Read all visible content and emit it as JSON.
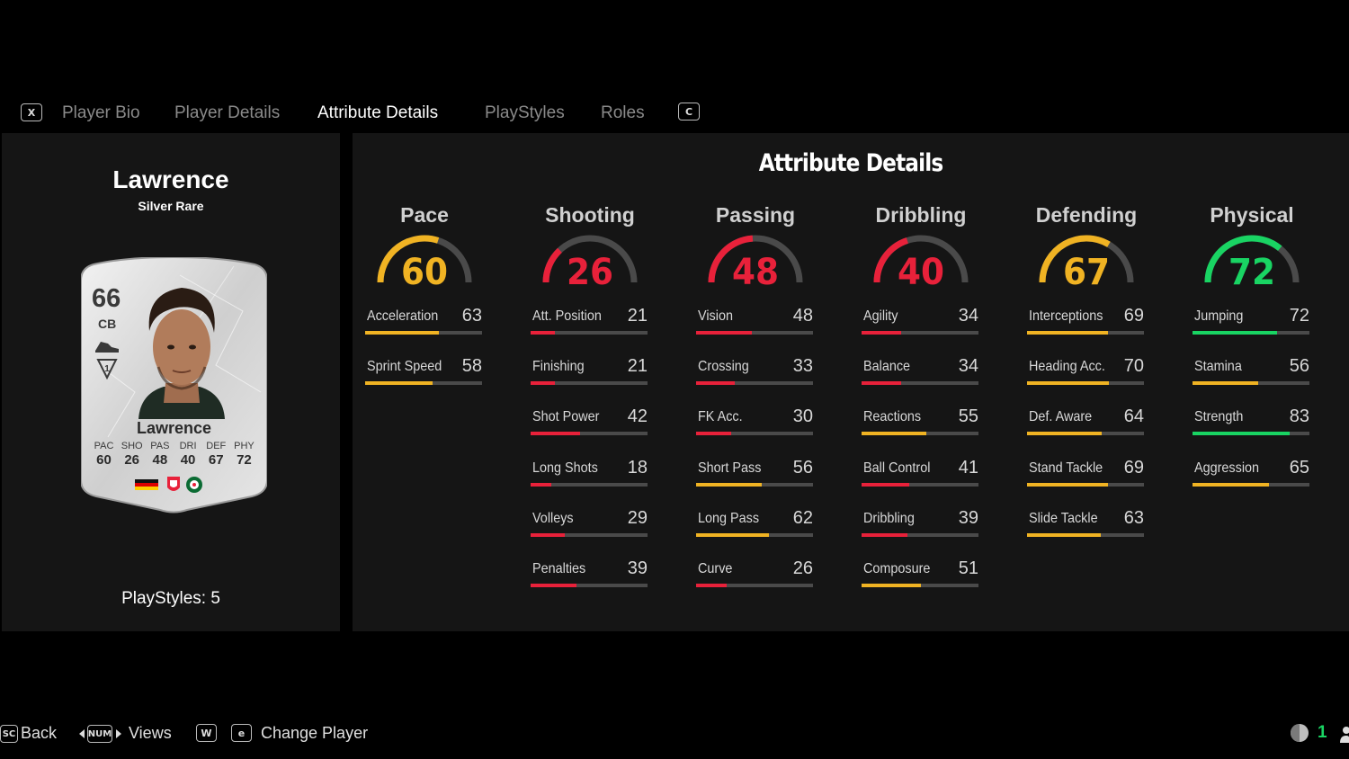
{
  "tabs": {
    "key_left": "X",
    "key_right": "C",
    "items": [
      {
        "label": "Player Bio",
        "active": false
      },
      {
        "label": "Player Details",
        "active": false
      },
      {
        "label": "Attribute Details",
        "active": true
      },
      {
        "label": "PlayStyles",
        "active": false
      },
      {
        "label": "Roles",
        "active": false
      }
    ]
  },
  "player": {
    "name": "Lawrence",
    "rarity": "Silver Rare",
    "playstyles": "PlayStyles: 5"
  },
  "card": {
    "rating": "66",
    "position": "CB",
    "name": "Lawrence",
    "stats": [
      {
        "label": "PAC",
        "value": "60"
      },
      {
        "label": "SHO",
        "value": "26"
      },
      {
        "label": "PAS",
        "value": "48"
      },
      {
        "label": "DRI",
        "value": "40"
      },
      {
        "label": "DEF",
        "value": "67"
      },
      {
        "label": "PHY",
        "value": "72"
      }
    ]
  },
  "main": {
    "title": "Attribute Details",
    "categories": [
      {
        "name": "Pace",
        "value": 60,
        "color": "#f0b323",
        "attributes": [
          {
            "name": "Acceleration",
            "value": 63,
            "color": "#f0b323"
          },
          {
            "name": "Sprint Speed",
            "value": 58,
            "color": "#f0b323"
          }
        ]
      },
      {
        "name": "Shooting",
        "value": 26,
        "color": "#e8213a",
        "attributes": [
          {
            "name": "Att. Position",
            "value": 21,
            "color": "#e8213a"
          },
          {
            "name": "Finishing",
            "value": 21,
            "color": "#e8213a"
          },
          {
            "name": "Shot Power",
            "value": 42,
            "color": "#e8213a"
          },
          {
            "name": "Long Shots",
            "value": 18,
            "color": "#e8213a"
          },
          {
            "name": "Volleys",
            "value": 29,
            "color": "#e8213a"
          },
          {
            "name": "Penalties",
            "value": 39,
            "color": "#e8213a"
          }
        ]
      },
      {
        "name": "Passing",
        "value": 48,
        "color": "#e8213a",
        "attributes": [
          {
            "name": "Vision",
            "value": 48,
            "color": "#e8213a"
          },
          {
            "name": "Crossing",
            "value": 33,
            "color": "#e8213a"
          },
          {
            "name": "FK Acc.",
            "value": 30,
            "color": "#e8213a"
          },
          {
            "name": "Short Pass",
            "value": 56,
            "color": "#f0b323"
          },
          {
            "name": "Long Pass",
            "value": 62,
            "color": "#f0b323"
          },
          {
            "name": "Curve",
            "value": 26,
            "color": "#e8213a"
          }
        ]
      },
      {
        "name": "Dribbling",
        "value": 40,
        "color": "#e8213a",
        "attributes": [
          {
            "name": "Agility",
            "value": 34,
            "color": "#e8213a"
          },
          {
            "name": "Balance",
            "value": 34,
            "color": "#e8213a"
          },
          {
            "name": "Reactions",
            "value": 55,
            "color": "#f0b323"
          },
          {
            "name": "Ball Control",
            "value": 41,
            "color": "#e8213a"
          },
          {
            "name": "Dribbling",
            "value": 39,
            "color": "#e8213a"
          },
          {
            "name": "Composure",
            "value": 51,
            "color": "#f0b323"
          }
        ]
      },
      {
        "name": "Defending",
        "value": 67,
        "color": "#f0b323",
        "attributes": [
          {
            "name": "Interceptions",
            "value": 69,
            "color": "#f0b323"
          },
          {
            "name": "Heading Acc.",
            "value": 70,
            "color": "#f0b323"
          },
          {
            "name": "Def. Aware",
            "value": 64,
            "color": "#f0b323"
          },
          {
            "name": "Stand Tackle",
            "value": 69,
            "color": "#f0b323"
          },
          {
            "name": "Slide Tackle",
            "value": 63,
            "color": "#f0b323"
          }
        ]
      },
      {
        "name": "Physical",
        "value": 72,
        "color": "#19d463",
        "attributes": [
          {
            "name": "Jumping",
            "value": 72,
            "color": "#19d463"
          },
          {
            "name": "Stamina",
            "value": 56,
            "color": "#f0b323"
          },
          {
            "name": "Strength",
            "value": 83,
            "color": "#19d463"
          },
          {
            "name": "Aggression",
            "value": 65,
            "color": "#f0b323"
          }
        ]
      }
    ]
  },
  "footer": {
    "back_key": "SC",
    "back_label": "Back",
    "views_key": "NUM",
    "views_label": "Views",
    "w_key": "W",
    "e_key": "e",
    "change_label": "Change Player",
    "counter": "1"
  },
  "colors": {
    "gauge_track": "#4a4a4a",
    "bar_track": "#4a4a4a",
    "panel_bg": "#151515"
  }
}
